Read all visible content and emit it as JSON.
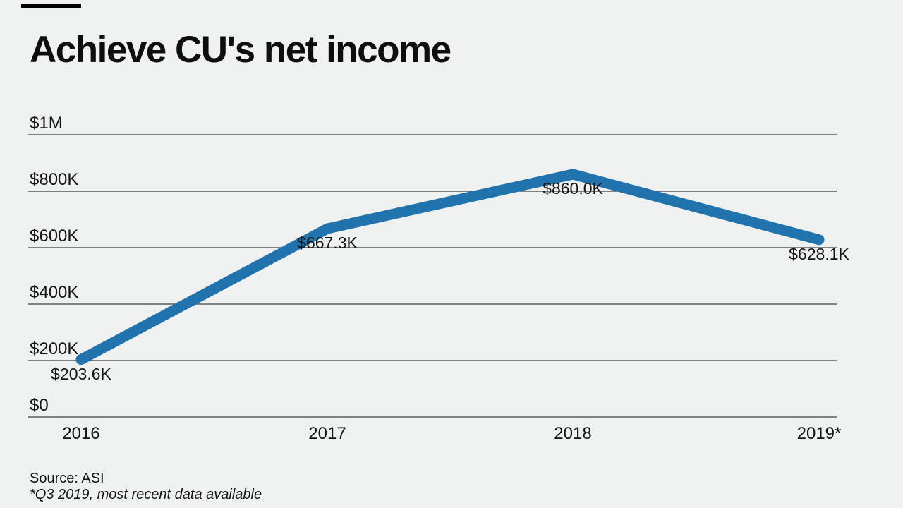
{
  "page": {
    "background_color": "#eff1f0",
    "kicker_bar_color": "#000000",
    "text_color": "#141414",
    "gridline_color": "#3d3d3d"
  },
  "header": {
    "title": "Achieve CU's net income"
  },
  "chart_data": {
    "type": "line",
    "title": "Achieve CU's net income",
    "categories": [
      "2016",
      "2017",
      "2018",
      "2019*"
    ],
    "series": [
      {
        "name": "Net income",
        "values": [
          203600,
          667300,
          860000,
          628100
        ]
      }
    ],
    "point_labels": [
      "$203.6K",
      "$667.3K",
      "$860.0K",
      "$628.1K"
    ],
    "yticks": [
      {
        "label": "$1M",
        "value": 1000000
      },
      {
        "label": "$800K",
        "value": 800000
      },
      {
        "label": "$600K",
        "value": 600000
      },
      {
        "label": "$400K",
        "value": 400000
      },
      {
        "label": "$200K",
        "value": 200000
      },
      {
        "label": "$0",
        "value": 0
      }
    ],
    "ylim": [
      0,
      1000000
    ],
    "xlabel": "",
    "ylabel": "",
    "grid": true,
    "legend": false,
    "line_color": "#2173ad",
    "line_width": 15
  },
  "footer": {
    "source": "Source: ASI",
    "note": "*Q3 2019, most recent data available"
  }
}
